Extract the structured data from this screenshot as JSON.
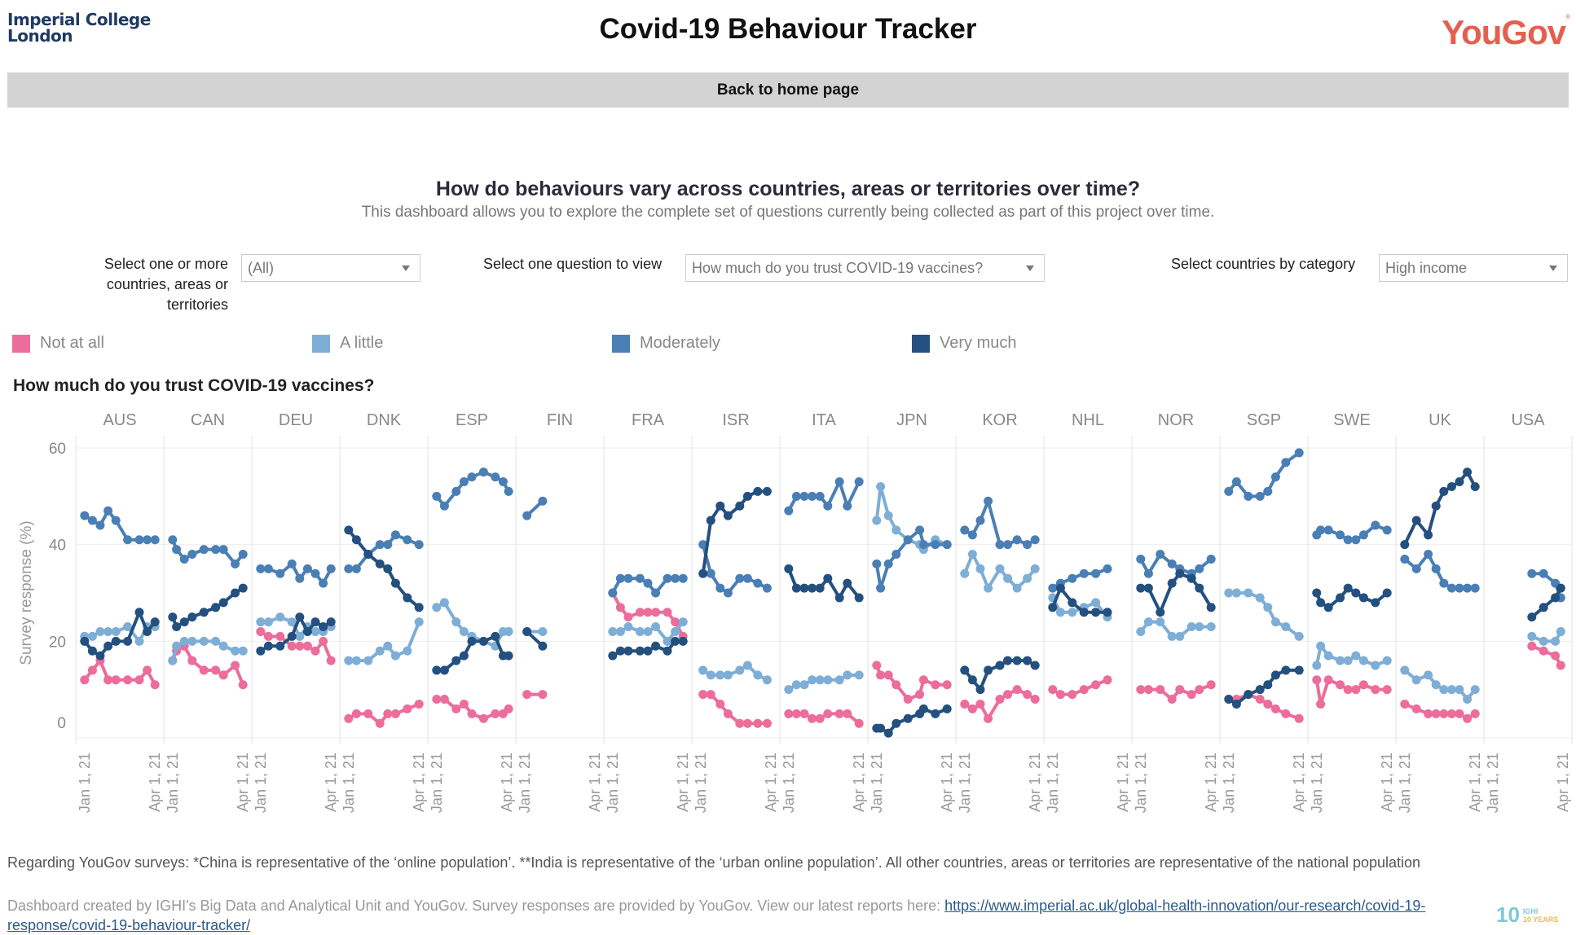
{
  "header": {
    "org_logo_line1": "Imperial College",
    "org_logo_line2": "London",
    "title": "Covid-19 Behaviour Tracker",
    "partner_logo": "YouGov",
    "partner_logo_mark": "®",
    "home_link": "Back to home page"
  },
  "intro": {
    "heading": "How do behaviours vary across countries, areas or territories over time?",
    "subheading": "This dashboard allows you to explore the complete set of questions currently being collected as part of this project over time."
  },
  "filters": {
    "countries": {
      "label_line1": "Select one or more",
      "label_line2": "countries, areas or",
      "label_line3": "territories",
      "value": "(All)"
    },
    "question": {
      "label": "Select one question to view",
      "value": "How much do you trust COVID-19 vaccines?"
    },
    "category": {
      "label": "Select countries by category",
      "value": "High income"
    }
  },
  "legend": [
    {
      "label": "Not at all",
      "color": "#ec6d9a"
    },
    {
      "label": "A little",
      "color": "#7eaed6"
    },
    {
      "label": "Moderately",
      "color": "#4a7fb5"
    },
    {
      "label": "Very much",
      "color": "#24507f"
    }
  ],
  "chart_data": {
    "type": "line",
    "title": "How much do you trust COVID-19 vaccines?",
    "ylabel": "Survey response (%)",
    "xlabel": "",
    "ylim": [
      0,
      60
    ],
    "yticks": [
      0,
      20,
      40,
      60
    ],
    "xtick_labels": [
      "Jan 1, 21",
      "Apr 1, 21"
    ],
    "grid": true,
    "legend_position": "top",
    "series_names": [
      "Not at all",
      "A little",
      "Moderately",
      "Very much"
    ],
    "panels": [
      {
        "country": "AUS",
        "x": [
          0.05,
          0.15,
          0.25,
          0.35,
          0.45,
          0.6,
          0.75,
          0.85,
          0.95
        ],
        "series": {
          "Not at all": [
            12,
            14,
            16,
            12,
            12,
            12,
            12,
            14,
            11
          ],
          "A little": [
            21,
            21,
            22,
            22,
            22,
            23,
            20,
            23,
            23
          ],
          "Moderately": [
            46,
            45,
            44,
            47,
            45,
            41,
            41,
            41,
            41
          ],
          "Very much": [
            20,
            18,
            17,
            19,
            20,
            20,
            26,
            22,
            24
          ]
        }
      },
      {
        "country": "CAN",
        "x": [
          0.05,
          0.1,
          0.2,
          0.3,
          0.45,
          0.6,
          0.7,
          0.85,
          0.95
        ],
        "series": {
          "Not at all": [
            16,
            18,
            19,
            16,
            14,
            14,
            13,
            15,
            11
          ],
          "A little": [
            16,
            19,
            20,
            20,
            20,
            20,
            19,
            18,
            18
          ],
          "Moderately": [
            41,
            39,
            37,
            38,
            39,
            39,
            39,
            36,
            38
          ],
          "Very much": [
            25,
            23,
            24,
            25,
            26,
            27,
            28,
            30,
            31
          ]
        }
      },
      {
        "country": "DEU",
        "x": [
          0.05,
          0.15,
          0.3,
          0.45,
          0.55,
          0.65,
          0.75,
          0.85,
          0.95
        ],
        "series": {
          "Not at all": [
            22,
            21,
            21,
            19,
            19,
            19,
            18,
            20,
            16
          ],
          "A little": [
            24,
            24,
            25,
            24,
            21,
            23,
            22,
            22,
            23
          ],
          "Moderately": [
            35,
            35,
            34,
            36,
            33,
            35,
            34,
            32,
            35
          ],
          "Very much": [
            18,
            19,
            19,
            21,
            25,
            22,
            24,
            23,
            24
          ]
        }
      },
      {
        "country": "DNK",
        "x": [
          0.05,
          0.15,
          0.3,
          0.45,
          0.55,
          0.65,
          0.8,
          0.95
        ],
        "series": {
          "Not at all": [
            4,
            5,
            5,
            3,
            5,
            5,
            6,
            7
          ],
          "A little": [
            16,
            16,
            16,
            18,
            19,
            17,
            18,
            24
          ],
          "Moderately": [
            35,
            35,
            38,
            40,
            40,
            42,
            41,
            40
          ],
          "Very much": [
            43,
            41,
            38,
            36,
            35,
            32,
            29,
            27
          ]
        }
      },
      {
        "country": "ESP",
        "x": [
          0.05,
          0.15,
          0.3,
          0.4,
          0.5,
          0.65,
          0.8,
          0.9,
          0.97
        ],
        "series": {
          "Not at all": [
            8,
            8,
            6,
            7,
            5,
            4,
            5,
            5,
            6
          ],
          "A little": [
            27,
            28,
            24,
            22,
            21,
            20,
            19,
            22,
            22
          ],
          "Moderately": [
            50,
            48,
            51,
            53,
            54,
            55,
            54,
            53,
            51
          ],
          "Very much": [
            14,
            14,
            16,
            17,
            20,
            20,
            21,
            17,
            17
          ]
        }
      },
      {
        "country": "FIN",
        "x": [
          0.08,
          0.28
        ],
        "series": {
          "Not at all": [
            9,
            9
          ],
          "A little": [
            22,
            22
          ],
          "Moderately": [
            46,
            49
          ],
          "Very much": [
            22,
            19
          ]
        }
      },
      {
        "country": "FRA",
        "x": [
          0.05,
          0.15,
          0.25,
          0.4,
          0.5,
          0.6,
          0.75,
          0.85,
          0.95
        ],
        "series": {
          "Not at all": [
            30,
            27,
            25,
            26,
            26,
            26,
            26,
            24,
            21
          ],
          "A little": [
            22,
            22,
            23,
            22,
            22,
            23,
            20,
            22,
            24
          ],
          "Moderately": [
            30,
            33,
            33,
            33,
            32,
            30,
            33,
            33,
            33
          ],
          "Very much": [
            17,
            18,
            18,
            18,
            18,
            19,
            18,
            20,
            20
          ]
        }
      },
      {
        "country": "ISR",
        "x": [
          0.08,
          0.18,
          0.3,
          0.4,
          0.55,
          0.65,
          0.78,
          0.9
        ],
        "series": {
          "Not at all": [
            9,
            9,
            7,
            5,
            3,
            3,
            3,
            3
          ],
          "A little": [
            14,
            13,
            13,
            13,
            14,
            15,
            13,
            12
          ],
          "Moderately": [
            40,
            34,
            31,
            30,
            33,
            33,
            32,
            31
          ],
          "Very much": [
            34,
            45,
            48,
            46,
            48,
            50,
            51,
            51
          ]
        }
      },
      {
        "country": "ITA",
        "x": [
          0.05,
          0.15,
          0.25,
          0.35,
          0.45,
          0.55,
          0.7,
          0.8,
          0.95
        ],
        "series": {
          "Not at all": [
            5,
            5,
            5,
            4,
            4,
            5,
            5,
            5,
            3
          ],
          "A little": [
            10,
            11,
            11,
            12,
            12,
            12,
            12,
            13,
            13
          ],
          "Moderately": [
            47,
            50,
            50,
            50,
            50,
            48,
            53,
            48,
            53
          ],
          "Very much": [
            35,
            31,
            31,
            31,
            31,
            33,
            29,
            32,
            29
          ]
        }
      },
      {
        "country": "JPN",
        "x": [
          0.05,
          0.1,
          0.2,
          0.3,
          0.45,
          0.6,
          0.65,
          0.8,
          0.95
        ],
        "series": {
          "Not at all": [
            15,
            13,
            13,
            11,
            8,
            9,
            12,
            11,
            11
          ],
          "A little": [
            45,
            52,
            46,
            43,
            41,
            40,
            39,
            41,
            40
          ],
          "Moderately": [
            36,
            31,
            36,
            38,
            41,
            43,
            40,
            40,
            40
          ],
          "Very much": [
            2,
            2,
            1,
            3,
            4,
            5,
            6,
            5,
            6
          ]
        }
      },
      {
        "country": "KOR",
        "x": [
          0.05,
          0.15,
          0.25,
          0.35,
          0.5,
          0.6,
          0.72,
          0.85,
          0.95
        ],
        "series": {
          "Not at all": [
            7,
            6,
            7,
            4,
            8,
            9,
            10,
            9,
            8
          ],
          "A little": [
            34,
            38,
            35,
            31,
            35,
            33,
            31,
            33,
            35
          ],
          "Moderately": [
            43,
            42,
            45,
            49,
            40,
            40,
            41,
            40,
            41
          ],
          "Very much": [
            14,
            12,
            10,
            14,
            15,
            16,
            16,
            16,
            15
          ]
        }
      },
      {
        "country": "NHL",
        "x": [
          0.05,
          0.15,
          0.3,
          0.45,
          0.6,
          0.75
        ],
        "series": {
          "Not at all": [
            10,
            9,
            9,
            10,
            11,
            12
          ],
          "A little": [
            29,
            26,
            26,
            27,
            28,
            25
          ],
          "Moderately": [
            31,
            32,
            33,
            34,
            34,
            35
          ],
          "Very much": [
            27,
            31,
            28,
            26,
            26,
            26
          ]
        }
      },
      {
        "country": "NOR",
        "x": [
          0.05,
          0.15,
          0.3,
          0.45,
          0.55,
          0.7,
          0.8,
          0.95
        ],
        "series": {
          "Not at all": [
            10,
            10,
            10,
            8,
            10,
            9,
            10,
            11
          ],
          "A little": [
            22,
            24,
            24,
            21,
            21,
            23,
            23,
            23
          ],
          "Moderately": [
            37,
            34,
            38,
            36,
            35,
            34,
            35,
            37
          ],
          "Very much": [
            31,
            31,
            26,
            32,
            34,
            33,
            31,
            27
          ]
        }
      },
      {
        "country": "SGP",
        "x": [
          0.05,
          0.15,
          0.3,
          0.45,
          0.55,
          0.65,
          0.78,
          0.95
        ],
        "series": {
          "Not at all": [
            8,
            8,
            9,
            8,
            7,
            6,
            5,
            4
          ],
          "A little": [
            30,
            30,
            30,
            29,
            27,
            24,
            23,
            21
          ],
          "Moderately": [
            51,
            53,
            50,
            50,
            51,
            54,
            57,
            59
          ],
          "Very much": [
            8,
            7,
            9,
            10,
            11,
            13,
            14,
            14
          ]
        }
      },
      {
        "country": "SWE",
        "x": [
          0.05,
          0.1,
          0.2,
          0.35,
          0.45,
          0.55,
          0.65,
          0.8,
          0.95
        ],
        "series": {
          "Not at all": [
            12,
            7,
            12,
            11,
            10,
            10,
            11,
            10,
            10
          ],
          "A little": [
            15,
            19,
            17,
            16,
            16,
            17,
            16,
            15,
            16
          ],
          "Moderately": [
            42,
            43,
            43,
            42,
            41,
            41,
            42,
            44,
            43
          ],
          "Very much": [
            30,
            28,
            27,
            29,
            31,
            30,
            29,
            28,
            30
          ]
        }
      },
      {
        "country": "UK",
        "x": [
          0.05,
          0.2,
          0.35,
          0.45,
          0.55,
          0.65,
          0.75,
          0.85,
          0.95
        ],
        "series": {
          "Not at all": [
            7,
            6,
            5,
            5,
            5,
            5,
            5,
            4,
            5
          ],
          "A little": [
            14,
            12,
            13,
            11,
            10,
            10,
            10,
            8,
            10
          ],
          "Moderately": [
            37,
            35,
            38,
            35,
            32,
            31,
            31,
            31,
            31
          ],
          "Very much": [
            40,
            45,
            42,
            48,
            51,
            52,
            53,
            55,
            52
          ]
        }
      },
      {
        "country": "USA",
        "x": [
          0.55,
          0.7,
          0.85,
          0.92
        ],
        "series": {
          "Not at all": [
            19,
            18,
            17,
            15
          ],
          "A little": [
            21,
            20,
            20,
            22
          ],
          "Moderately": [
            34,
            34,
            32,
            29
          ],
          "Very much": [
            25,
            27,
            29,
            31
          ]
        }
      }
    ]
  },
  "footer": {
    "note": "Regarding YouGov surveys: *China is representative of the ‘online population’. **India is representative of the ‘urban online population’. All other countries, areas or territories are representative of the national population",
    "credits": "Dashboard created by IGHI's Big Data and Analytical Unit and YouGov. Survey responses are provided by YouGov. View our latest reports here: ",
    "link_text": "https://www.imperial.ac.uk/global-health-innovation/our-research/covid-19-response/covid-19-behaviour-tracker/",
    "badge_number": "10",
    "badge_line1": "IGHI",
    "badge_line2": "10 YEARS"
  }
}
